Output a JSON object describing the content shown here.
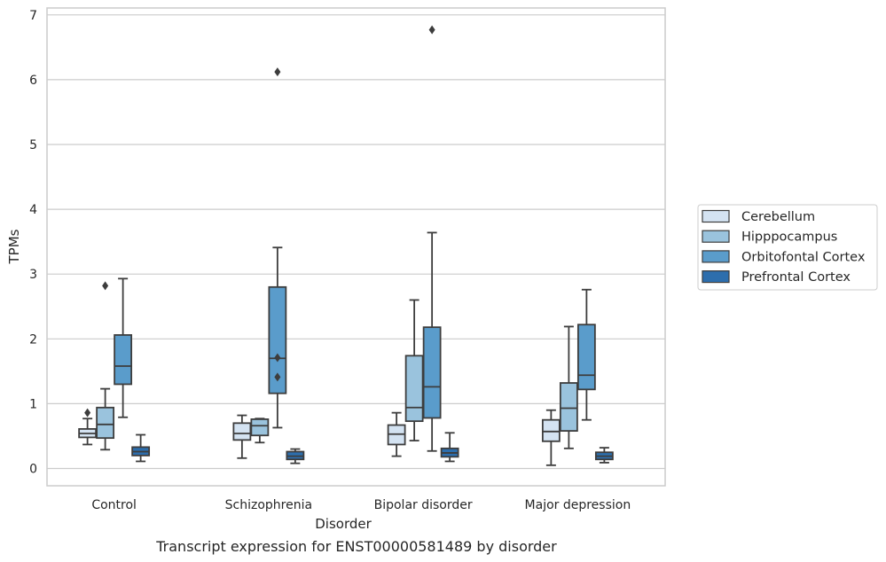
{
  "caption": "Transcript expression for ENST00000581489 by disorder",
  "chart_data": {
    "type": "box",
    "title": "",
    "xlabel": "Disorder",
    "ylabel": "TPMs",
    "ylim": [
      -0.27,
      7.12
    ],
    "yticks": [
      "0",
      "1",
      "2",
      "3",
      "4",
      "5",
      "6",
      "7"
    ],
    "grid": "horizontal",
    "legend_position": "right",
    "categories": [
      "Control",
      "Schizophrenia",
      "Bipolar disorder",
      "Major depression"
    ],
    "series": [
      {
        "name": "Cerebellum",
        "color": "#d4e3f2",
        "boxes": [
          {
            "whislo": 0.37,
            "q1": 0.48,
            "med": 0.54,
            "q3": 0.61,
            "whishi": 0.77,
            "fliers": [
              0.86
            ]
          },
          {
            "whislo": 0.16,
            "q1": 0.44,
            "med": 0.54,
            "q3": 0.7,
            "whishi": 0.82,
            "fliers": []
          },
          {
            "whislo": 0.19,
            "q1": 0.37,
            "med": 0.53,
            "q3": 0.67,
            "whishi": 0.86,
            "fliers": []
          },
          {
            "whislo": 0.05,
            "q1": 0.42,
            "med": 0.57,
            "q3": 0.75,
            "whishi": 0.9,
            "fliers": []
          }
        ]
      },
      {
        "name": "Hipppocampus",
        "color": "#9ac3dd",
        "boxes": [
          {
            "whislo": 0.29,
            "q1": 0.47,
            "med": 0.68,
            "q3": 0.94,
            "whishi": 1.23,
            "fliers": [
              2.82
            ]
          },
          {
            "whislo": 0.4,
            "q1": 0.51,
            "med": 0.66,
            "q3": 0.76,
            "whishi": 0.77,
            "fliers": []
          },
          {
            "whislo": 0.43,
            "q1": 0.73,
            "med": 0.94,
            "q3": 1.74,
            "whishi": 2.6,
            "fliers": []
          },
          {
            "whislo": 0.31,
            "q1": 0.58,
            "med": 0.93,
            "q3": 1.32,
            "whishi": 2.19,
            "fliers": []
          }
        ]
      },
      {
        "name": "Orbitofontal Cortex",
        "color": "#5a9ccb",
        "boxes": [
          {
            "whislo": 0.79,
            "q1": 1.3,
            "med": 1.58,
            "q3": 2.06,
            "whishi": 2.93,
            "fliers": []
          },
          {
            "whislo": 0.63,
            "q1": 1.16,
            "med": 1.7,
            "q3": 2.8,
            "whishi": 3.41,
            "fliers": [
              1.41,
              1.71,
              6.12
            ]
          },
          {
            "whislo": 0.27,
            "q1": 0.78,
            "med": 1.26,
            "q3": 2.18,
            "whishi": 3.64,
            "fliers": [
              6.77
            ]
          },
          {
            "whislo": 0.75,
            "q1": 1.22,
            "med": 1.44,
            "q3": 2.22,
            "whishi": 2.76,
            "fliers": []
          }
        ]
      },
      {
        "name": "Prefrontal Cortex",
        "color": "#2d6ead",
        "boxes": [
          {
            "whislo": 0.11,
            "q1": 0.2,
            "med": 0.26,
            "q3": 0.33,
            "whishi": 0.52,
            "fliers": []
          },
          {
            "whislo": 0.08,
            "q1": 0.14,
            "med": 0.19,
            "q3": 0.26,
            "whishi": 0.3,
            "fliers": []
          },
          {
            "whislo": 0.11,
            "q1": 0.18,
            "med": 0.24,
            "q3": 0.31,
            "whishi": 0.55,
            "fliers": []
          },
          {
            "whislo": 0.09,
            "q1": 0.14,
            "med": 0.19,
            "q3": 0.25,
            "whishi": 0.32,
            "fliers": []
          }
        ]
      }
    ]
  }
}
